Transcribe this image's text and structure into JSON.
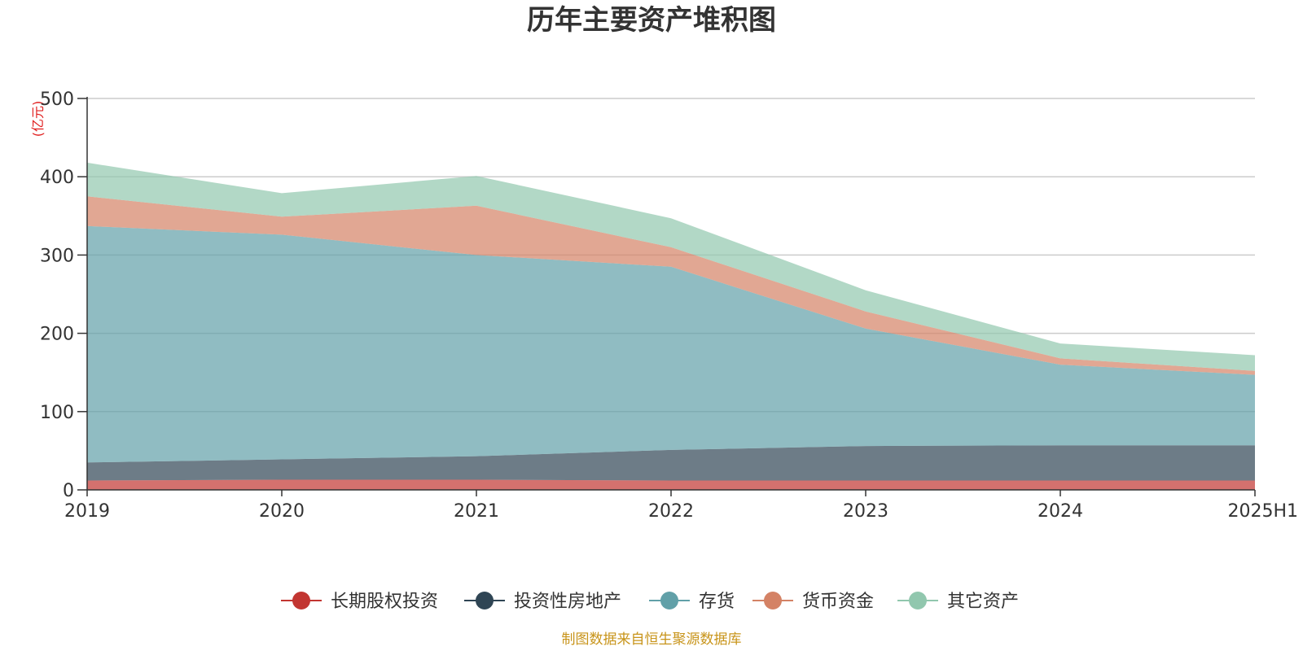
{
  "chart_data": {
    "type": "area",
    "stacked": true,
    "title": "历年主要资产堆积图",
    "unit_label": "(亿元)",
    "categories": [
      "2019",
      "2020",
      "2021",
      "2022",
      "2023",
      "2024",
      "2025H1"
    ],
    "ylim": [
      0,
      500
    ],
    "yticks": [
      "0",
      "100",
      "200",
      "300",
      "400",
      "500"
    ],
    "grid": true,
    "legend_position": "bottom",
    "series": [
      {
        "name": "长期股权投资",
        "color": "#c23531",
        "values": [
          12,
          13,
          13,
          12,
          12,
          12,
          12
        ]
      },
      {
        "name": "投资性房地产",
        "color": "#2f4554",
        "values": [
          23,
          26,
          30,
          39,
          44,
          45,
          45
        ]
      },
      {
        "name": "存货",
        "color": "#61a0a8",
        "values": [
          302,
          287,
          257,
          234,
          150,
          103,
          90
        ]
      },
      {
        "name": "货币资金",
        "color": "#d48265",
        "values": [
          38,
          23,
          63,
          25,
          22,
          8,
          5
        ]
      },
      {
        "name": "其它资产",
        "color": "#91c7ae",
        "values": [
          43,
          30,
          38,
          37,
          27,
          19,
          20
        ]
      }
    ]
  },
  "footer": "制图数据来自恒生聚源数据库"
}
